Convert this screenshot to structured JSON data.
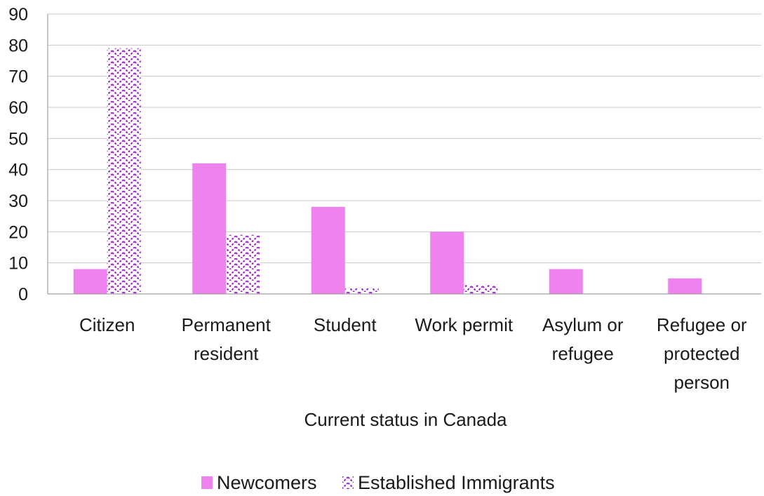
{
  "chart_data": {
    "type": "bar",
    "title": "",
    "xlabel": "Current status in Canada",
    "ylabel": "",
    "ylim": [
      0,
      90
    ],
    "yticks": [
      0,
      10,
      20,
      30,
      40,
      50,
      60,
      70,
      80,
      90
    ],
    "grid": true,
    "legend_position": "bottom",
    "categories": [
      [
        "Citizen"
      ],
      [
        "Permanent",
        "resident"
      ],
      [
        "Student"
      ],
      [
        "Work permit"
      ],
      [
        "Asylum or",
        "refugee"
      ],
      [
        "Refugee or",
        "protected",
        "person"
      ]
    ],
    "series": [
      {
        "name": "Newcomers",
        "values": [
          8,
          42,
          28,
          20,
          8,
          5
        ],
        "color": "#ee82ee",
        "pattern": "solid"
      },
      {
        "name": "Established Immigrants",
        "values": [
          79,
          19,
          2,
          3,
          0,
          0
        ],
        "color": "#9b30c8",
        "pattern": "zigzag"
      }
    ]
  }
}
